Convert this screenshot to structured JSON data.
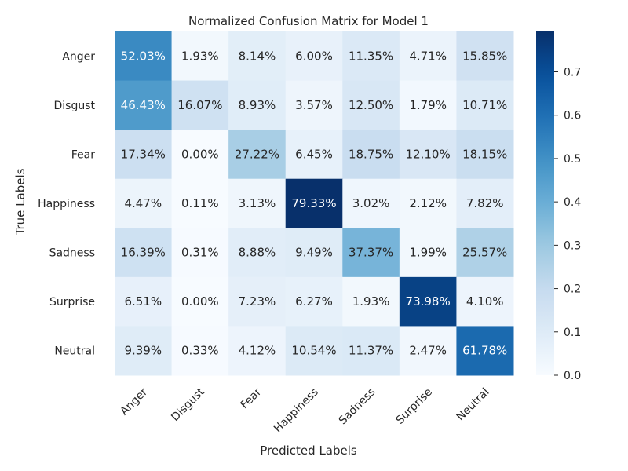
{
  "chart_data": {
    "type": "heatmap",
    "title": "Normalized Confusion Matrix for Model 1",
    "xlabel": "Predicted Labels",
    "ylabel": "True Labels",
    "x_categories": [
      "Anger",
      "Disgust",
      "Fear",
      "Happiness",
      "Sadness",
      "Surprise",
      "Neutral"
    ],
    "y_categories": [
      "Anger",
      "Disgust",
      "Fear",
      "Happiness",
      "Sadness",
      "Surprise",
      "Neutral"
    ],
    "values": [
      [
        52.03,
        1.93,
        8.14,
        6.0,
        11.35,
        4.71,
        15.85
      ],
      [
        46.43,
        16.07,
        8.93,
        3.57,
        12.5,
        1.79,
        10.71
      ],
      [
        17.34,
        0.0,
        27.22,
        6.45,
        18.75,
        12.1,
        18.15
      ],
      [
        4.47,
        0.11,
        3.13,
        79.33,
        3.02,
        2.12,
        7.82
      ],
      [
        16.39,
        0.31,
        8.88,
        9.49,
        37.37,
        1.99,
        25.57
      ],
      [
        6.51,
        0.0,
        7.23,
        6.27,
        1.93,
        73.98,
        4.1
      ],
      [
        9.39,
        0.33,
        4.12,
        10.54,
        11.37,
        2.47,
        61.78
      ]
    ],
    "value_format": "percent",
    "colormap": "Blues",
    "colorbar": {
      "range": [
        0.0,
        0.7933
      ],
      "ticks": [
        "0.0",
        "0.1",
        "0.2",
        "0.3",
        "0.4",
        "0.5",
        "0.6",
        "0.7"
      ]
    },
    "grid": false,
    "legend": "colorbar-right"
  }
}
